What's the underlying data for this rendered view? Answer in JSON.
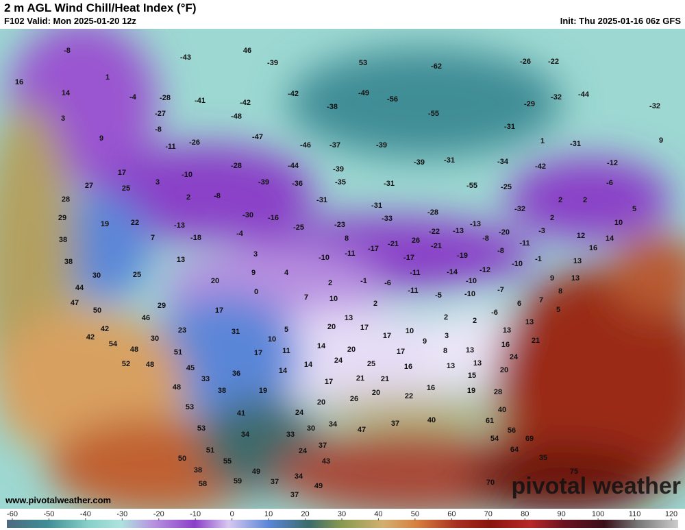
{
  "header": {
    "title": "2 m AGL Wind Chill/Heat Index (°F)",
    "valid": "F102 Valid: Mon 2025-01-20 12z",
    "init": "Init: Thu 2025-01-16 06z GFS"
  },
  "footer": {
    "site": "www.pivotalweather.com",
    "brand": "pivotal weather"
  },
  "colorbar": {
    "range": [
      -60,
      120
    ],
    "ticks": [
      -60,
      -50,
      -40,
      -30,
      -20,
      -10,
      0,
      10,
      20,
      30,
      40,
      50,
      60,
      70,
      80,
      90,
      100,
      110,
      120
    ]
  },
  "map": {
    "labels": [
      -8,
      -43,
      46,
      -39,
      53,
      -62,
      -26,
      -22,
      16,
      14,
      1,
      -4,
      -28,
      -41,
      -42,
      -42,
      -38,
      -49,
      -56,
      -44,
      -32,
      -29,
      -32,
      3,
      -27,
      -48,
      -55,
      -31,
      9,
      -8,
      -47,
      -46,
      -37,
      -39,
      -11,
      -26,
      1,
      -31,
      9,
      -28,
      -44,
      -39,
      -39,
      -31,
      -34,
      -42,
      -12,
      17,
      -10,
      -35,
      -31,
      -55,
      -25,
      -6,
      27,
      25,
      3,
      -39,
      -36,
      -31,
      2,
      2,
      28,
      2,
      -8,
      -31,
      -28,
      -32,
      5,
      29,
      19,
      22,
      -13,
      -30,
      -16,
      -25,
      -23,
      -33,
      -22,
      -13,
      -20,
      -3,
      10,
      2,
      38,
      7,
      -18,
      -4,
      8,
      -21,
      26,
      -21,
      -13,
      -8,
      -11,
      12,
      16,
      14,
      38,
      13,
      3,
      -10,
      -11,
      -17,
      -17,
      -19,
      -8,
      -10,
      -1,
      13,
      30,
      25,
      20,
      9,
      4,
      2,
      -1,
      -6,
      -11,
      -14,
      -12,
      -10,
      9,
      13,
      44,
      0,
      7,
      10,
      -11,
      -5,
      -10,
      -7,
      7,
      8,
      47,
      29,
      17,
      2,
      6,
      5,
      50,
      46,
      13,
      2,
      -6,
      2,
      42,
      23,
      31,
      5,
      20,
      17,
      17,
      10,
      3,
      13,
      13,
      42,
      54,
      30,
      10,
      14,
      20,
      9,
      16,
      21,
      48,
      51,
      17,
      11,
      24,
      17,
      8,
      13,
      24,
      52,
      48,
      45,
      14,
      14,
      25,
      16,
      13,
      13,
      20,
      33,
      36,
      21,
      21,
      15,
      48,
      17,
      38,
      19,
      20,
      22,
      16,
      19,
      28,
      53,
      20,
      26,
      40,
      41,
      24,
      37,
      40,
      61,
      53,
      34,
      33,
      30,
      34,
      47,
      56,
      54,
      69,
      51,
      24,
      37,
      64,
      55,
      43,
      35,
      50,
      38,
      49,
      34,
      75,
      58,
      59,
      37,
      49,
      70,
      37
    ]
  }
}
